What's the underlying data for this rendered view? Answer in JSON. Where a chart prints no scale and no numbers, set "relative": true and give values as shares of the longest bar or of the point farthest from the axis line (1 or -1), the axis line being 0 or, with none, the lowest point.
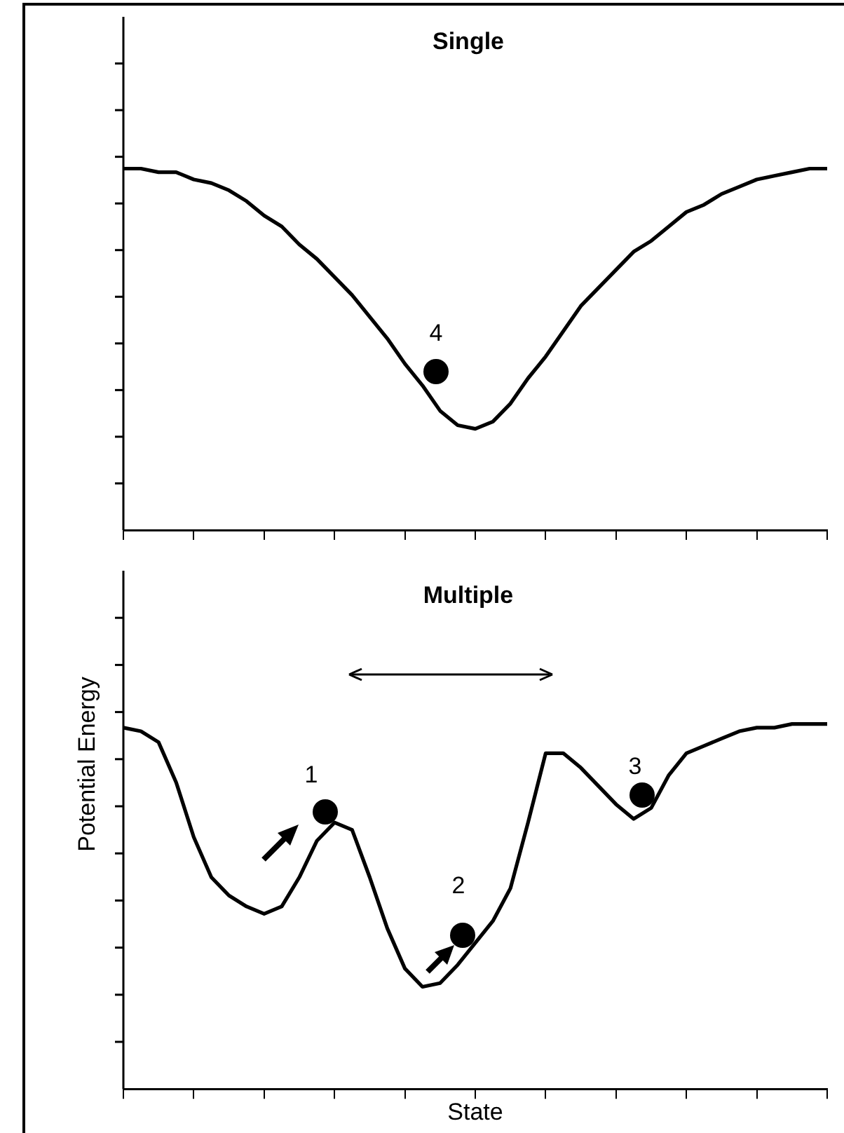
{
  "chart_data": [
    {
      "type": "line",
      "title": "Single",
      "relative": true,
      "tick_labels": false,
      "legend": false,
      "grid": false,
      "categories": [
        null,
        null,
        null,
        null,
        null,
        null,
        null,
        null,
        null,
        null,
        null,
        null,
        null,
        null,
        null,
        null,
        null,
        null,
        null,
        null,
        null,
        null,
        null,
        null,
        null,
        null,
        null,
        null,
        null,
        null,
        null,
        null,
        null,
        null,
        null,
        null,
        null,
        null,
        null,
        null,
        null
      ],
      "series": [
        {
          "color": "#000000",
          "values": [
            1.0,
            1.0,
            0.99,
            0.99,
            0.97,
            0.96,
            0.94,
            0.91,
            0.87,
            0.84,
            0.79,
            0.75,
            0.7,
            0.65,
            0.59,
            0.53,
            0.46,
            0.4,
            0.33,
            0.29,
            0.28,
            0.3,
            0.35,
            0.42,
            0.48,
            0.55,
            0.62,
            0.67,
            0.72,
            0.77,
            0.8,
            0.84,
            0.88,
            0.9,
            0.93,
            0.95,
            0.97,
            0.98,
            0.99,
            1.0,
            1.0
          ]
        }
      ],
      "annotations": [
        "4"
      ]
    },
    {
      "type": "line",
      "title": "Multiple",
      "xlabel": "State",
      "ylabel": "Potential Energy",
      "relative": true,
      "tick_labels": false,
      "legend": false,
      "grid": false,
      "categories": [
        null,
        null,
        null,
        null,
        null,
        null,
        null,
        null,
        null,
        null,
        null,
        null,
        null,
        null,
        null,
        null,
        null,
        null,
        null,
        null,
        null,
        null,
        null,
        null,
        null,
        null,
        null,
        null,
        null,
        null,
        null,
        null,
        null,
        null,
        null,
        null,
        null,
        null,
        null,
        null,
        null
      ],
      "series": [
        {
          "color": "#000000",
          "values": [
            0.99,
            0.98,
            0.95,
            0.84,
            0.69,
            0.58,
            0.53,
            0.5,
            0.48,
            0.5,
            0.58,
            0.68,
            0.73,
            0.71,
            0.58,
            0.44,
            0.33,
            0.28,
            0.29,
            0.34,
            0.4,
            0.46,
            0.55,
            0.73,
            0.92,
            0.92,
            0.88,
            0.83,
            0.78,
            0.74,
            0.77,
            0.86,
            0.92,
            0.94,
            0.96,
            0.98,
            0.99,
            0.99,
            1.0,
            1.0,
            1.0
          ]
        }
      ],
      "annotations": [
        "1",
        "2",
        "3"
      ]
    }
  ]
}
